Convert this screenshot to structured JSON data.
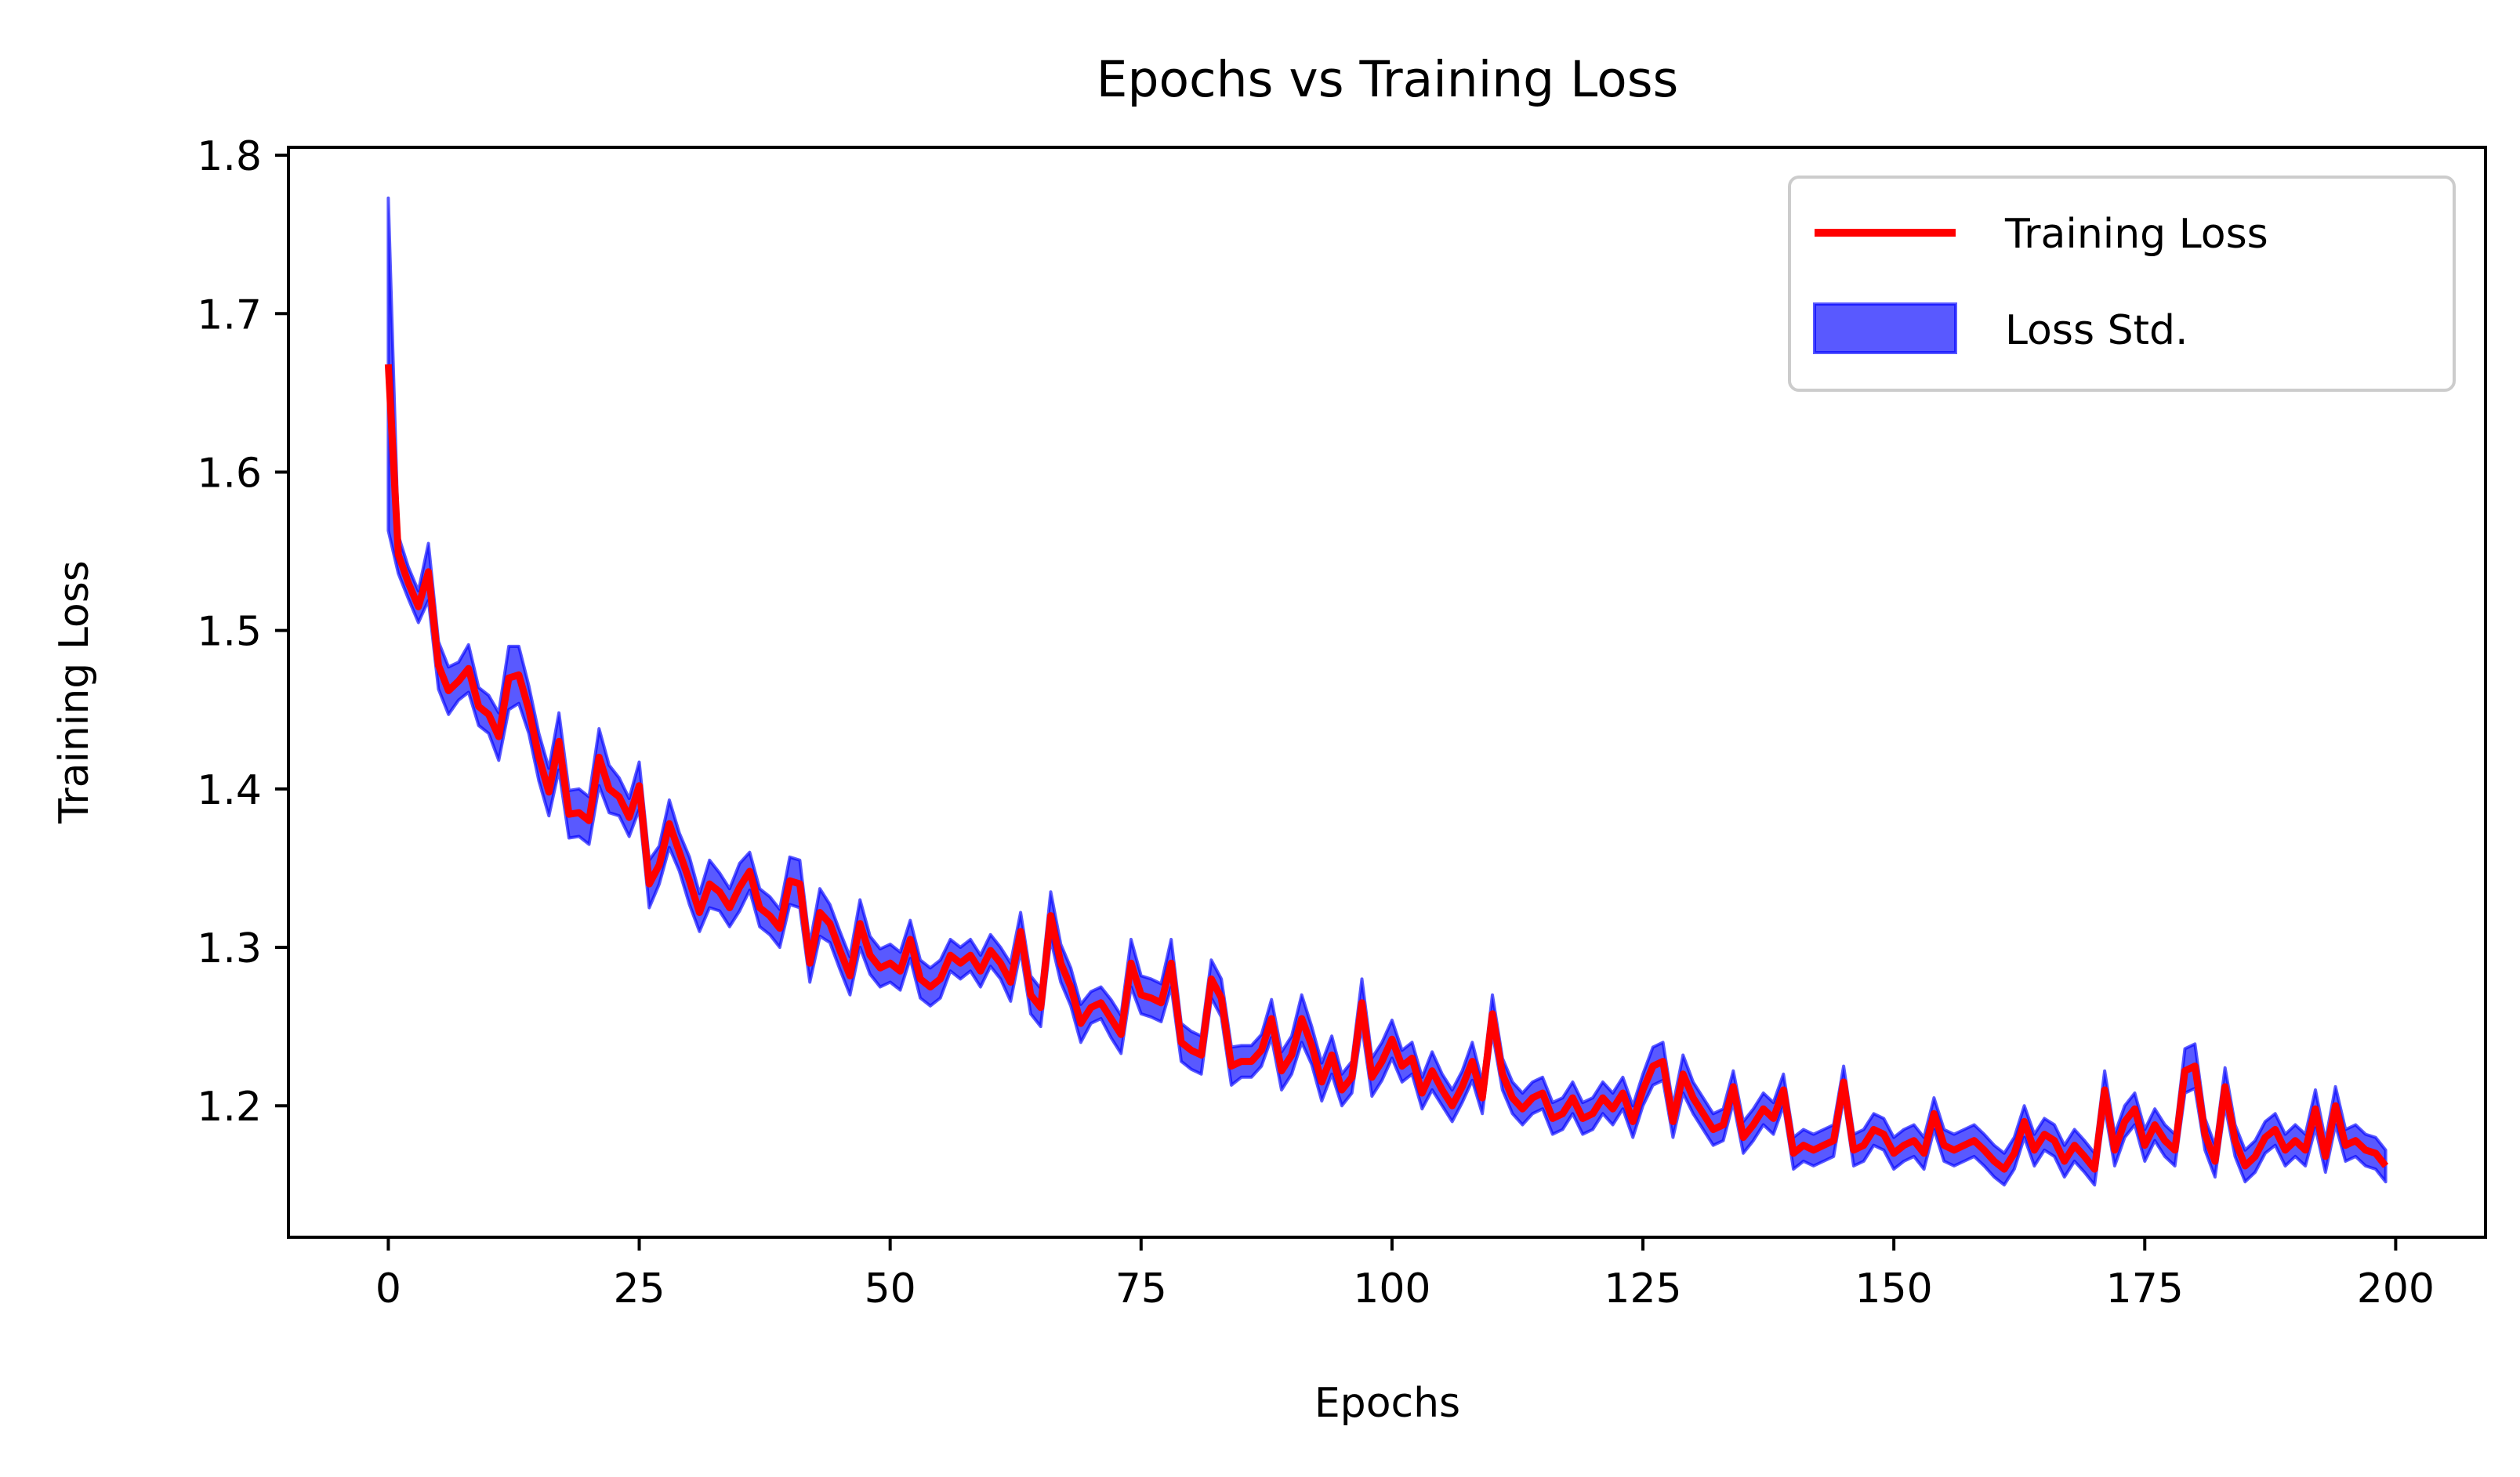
{
  "chart_data": {
    "type": "line",
    "title": "Epochs vs Training Loss",
    "xlabel": "Epochs",
    "ylabel": "Training Loss",
    "xlim": [
      -9.95,
      208.95
    ],
    "ylim": [
      1.117,
      1.805
    ],
    "x_ticks": [
      0,
      25,
      50,
      75,
      100,
      125,
      150,
      175,
      200
    ],
    "x_tick_labels": [
      "0",
      "25",
      "50",
      "75",
      "100",
      "125",
      "150",
      "175",
      "200"
    ],
    "y_ticks": [
      1.2,
      1.3,
      1.4,
      1.5,
      1.6,
      1.7,
      1.8
    ],
    "y_tick_labels": [
      "1.2",
      "1.3",
      "1.4",
      "1.5",
      "1.6",
      "1.7",
      "1.8"
    ],
    "grid": false,
    "legend": {
      "position": "upper right",
      "entries": [
        {
          "label": "Training Loss",
          "marker": "line",
          "color": "#ff0000"
        },
        {
          "label": "Loss Std.",
          "marker": "patch",
          "color": "#0000ff",
          "alpha": 0.65
        }
      ]
    },
    "x": [
      0,
      1,
      2,
      3,
      4,
      5,
      6,
      7,
      8,
      9,
      10,
      11,
      12,
      13,
      14,
      15,
      16,
      17,
      18,
      19,
      20,
      21,
      22,
      23,
      24,
      25,
      26,
      27,
      28,
      29,
      30,
      31,
      32,
      33,
      34,
      35,
      36,
      37,
      38,
      39,
      40,
      41,
      42,
      43,
      44,
      45,
      46,
      47,
      48,
      49,
      50,
      51,
      52,
      53,
      54,
      55,
      56,
      57,
      58,
      59,
      60,
      61,
      62,
      63,
      64,
      65,
      66,
      67,
      68,
      69,
      70,
      71,
      72,
      73,
      74,
      75,
      76,
      77,
      78,
      79,
      80,
      81,
      82,
      83,
      84,
      85,
      86,
      87,
      88,
      89,
      90,
      91,
      92,
      93,
      94,
      95,
      96,
      97,
      98,
      99,
      100,
      101,
      102,
      103,
      104,
      105,
      106,
      107,
      108,
      109,
      110,
      111,
      112,
      113,
      114,
      115,
      116,
      117,
      118,
      119,
      120,
      121,
      122,
      123,
      124,
      125,
      126,
      127,
      128,
      129,
      130,
      131,
      132,
      133,
      134,
      135,
      136,
      137,
      138,
      139,
      140,
      141,
      142,
      143,
      144,
      145,
      146,
      147,
      148,
      149,
      150,
      151,
      152,
      153,
      154,
      155,
      156,
      157,
      158,
      159,
      160,
      161,
      162,
      163,
      164,
      165,
      166,
      167,
      168,
      169,
      170,
      171,
      172,
      173,
      174,
      175,
      176,
      177,
      178,
      179,
      180,
      181,
      182,
      183,
      184,
      185,
      186,
      187,
      188,
      189,
      190,
      191,
      192,
      193,
      194,
      195,
      196,
      197,
      198,
      199
    ],
    "series": [
      {
        "name": "Training Loss",
        "color": "#ff0000",
        "values": [
          1.668,
          1.548,
          1.53,
          1.515,
          1.537,
          1.478,
          1.462,
          1.468,
          1.476,
          1.452,
          1.447,
          1.433,
          1.47,
          1.472,
          1.45,
          1.42,
          1.398,
          1.43,
          1.384,
          1.385,
          1.38,
          1.42,
          1.4,
          1.395,
          1.382,
          1.402,
          1.34,
          1.352,
          1.378,
          1.36,
          1.342,
          1.322,
          1.34,
          1.335,
          1.325,
          1.338,
          1.348,
          1.325,
          1.32,
          1.312,
          1.342,
          1.34,
          1.29,
          1.322,
          1.315,
          1.298,
          1.282,
          1.315,
          1.295,
          1.287,
          1.29,
          1.285,
          1.305,
          1.28,
          1.275,
          1.28,
          1.295,
          1.29,
          1.295,
          1.285,
          1.298,
          1.29,
          1.278,
          1.31,
          1.27,
          1.262,
          1.32,
          1.29,
          1.275,
          1.252,
          1.262,
          1.265,
          1.255,
          1.245,
          1.29,
          1.27,
          1.268,
          1.265,
          1.29,
          1.24,
          1.235,
          1.232,
          1.28,
          1.268,
          1.225,
          1.228,
          1.228,
          1.235,
          1.255,
          1.222,
          1.232,
          1.255,
          1.238,
          1.215,
          1.232,
          1.21,
          1.218,
          1.265,
          1.218,
          1.228,
          1.242,
          1.225,
          1.23,
          1.208,
          1.222,
          1.21,
          1.2,
          1.212,
          1.228,
          1.205,
          1.258,
          1.22,
          1.205,
          1.198,
          1.205,
          1.208,
          1.192,
          1.195,
          1.205,
          1.192,
          1.195,
          1.205,
          1.198,
          1.208,
          1.19,
          1.21,
          1.225,
          1.228,
          1.19,
          1.22,
          1.205,
          1.195,
          1.185,
          1.188,
          1.212,
          1.18,
          1.188,
          1.198,
          1.192,
          1.21,
          1.17,
          1.175,
          1.172,
          1.175,
          1.178,
          1.215,
          1.172,
          1.175,
          1.185,
          1.182,
          1.17,
          1.175,
          1.178,
          1.17,
          1.195,
          1.175,
          1.172,
          1.175,
          1.178,
          1.172,
          1.165,
          1.16,
          1.17,
          1.19,
          1.172,
          1.182,
          1.178,
          1.165,
          1.175,
          1.168,
          1.16,
          1.21,
          1.172,
          1.19,
          1.198,
          1.175,
          1.188,
          1.178,
          1.172,
          1.222,
          1.225,
          1.182,
          1.165,
          1.212,
          1.178,
          1.162,
          1.168,
          1.18,
          1.185,
          1.172,
          1.178,
          1.172,
          1.198,
          1.168,
          1.2,
          1.175,
          1.178,
          1.172,
          1.17,
          1.162
        ]
      },
      {
        "name": "Loss Std.",
        "color": "#0000ff",
        "alpha": 0.65,
        "std": [
          0.105,
          0.012,
          0.01,
          0.01,
          0.018,
          0.015,
          0.015,
          0.012,
          0.015,
          0.012,
          0.012,
          0.015,
          0.02,
          0.018,
          0.015,
          0.015,
          0.015,
          0.018,
          0.015,
          0.015,
          0.015,
          0.018,
          0.015,
          0.012,
          0.012,
          0.015,
          0.015,
          0.012,
          0.015,
          0.012,
          0.015,
          0.012,
          0.015,
          0.012,
          0.012,
          0.015,
          0.012,
          0.012,
          0.012,
          0.012,
          0.015,
          0.015,
          0.012,
          0.015,
          0.012,
          0.012,
          0.012,
          0.015,
          0.012,
          0.012,
          0.012,
          0.012,
          0.012,
          0.012,
          0.012,
          0.012,
          0.01,
          0.01,
          0.01,
          0.01,
          0.01,
          0.01,
          0.012,
          0.012,
          0.012,
          0.012,
          0.015,
          0.012,
          0.012,
          0.012,
          0.01,
          0.01,
          0.012,
          0.012,
          0.015,
          0.012,
          0.012,
          0.012,
          0.015,
          0.012,
          0.012,
          0.012,
          0.012,
          0.012,
          0.012,
          0.01,
          0.01,
          0.01,
          0.012,
          0.012,
          0.012,
          0.015,
          0.012,
          0.012,
          0.012,
          0.01,
          0.01,
          0.015,
          0.012,
          0.012,
          0.012,
          0.01,
          0.01,
          0.01,
          0.012,
          0.01,
          0.01,
          0.01,
          0.012,
          0.01,
          0.012,
          0.01,
          0.01,
          0.01,
          0.01,
          0.01,
          0.01,
          0.01,
          0.01,
          0.01,
          0.01,
          0.01,
          0.01,
          0.01,
          0.01,
          0.01,
          0.012,
          0.012,
          0.01,
          0.012,
          0.01,
          0.01,
          0.01,
          0.01,
          0.01,
          0.01,
          0.01,
          0.01,
          0.01,
          0.01,
          0.01,
          0.01,
          0.01,
          0.01,
          0.01,
          0.01,
          0.01,
          0.01,
          0.01,
          0.01,
          0.01,
          0.01,
          0.01,
          0.01,
          0.01,
          0.01,
          0.01,
          0.01,
          0.01,
          0.01,
          0.01,
          0.01,
          0.01,
          0.01,
          0.01,
          0.01,
          0.01,
          0.01,
          0.01,
          0.01,
          0.01,
          0.012,
          0.01,
          0.01,
          0.01,
          0.01,
          0.01,
          0.01,
          0.01,
          0.014,
          0.014,
          0.01,
          0.01,
          0.012,
          0.01,
          0.01,
          0.01,
          0.01,
          0.01,
          0.01,
          0.01,
          0.01,
          0.012,
          0.01,
          0.012,
          0.01,
          0.01,
          0.01,
          0.01,
          0.01
        ]
      }
    ]
  }
}
